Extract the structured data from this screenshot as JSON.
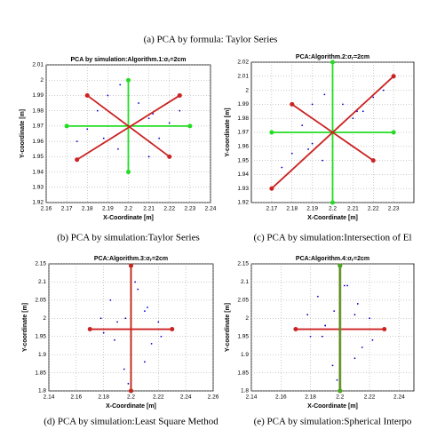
{
  "figure_caption": "(a) PCA by formula: Taylor Series",
  "chart_data": [
    {
      "type": "scatter",
      "title": "PCA by simulation:Algorithm.1:σ",
      "title_sub": "r",
      "title_end": "=2cm",
      "caption": "(b) PCA by simulation:Taylor Series",
      "xlabel": "X-Coordinate [m]",
      "ylabel": "Y-coordinate [m]",
      "xlim": [
        2.16,
        2.24
      ],
      "xticks": [
        2.16,
        2.17,
        2.18,
        2.19,
        {
          "value": 2.2,
          "label": "2.2"
        },
        2.21,
        2.22,
        2.23,
        2.24
      ],
      "ylim": [
        1.92,
        2.01
      ],
      "yticks": [
        1.92,
        1.93,
        1.94,
        1.95,
        1.96,
        {
          "value": 1.97,
          "label": "1.97"
        },
        1.98,
        1.99,
        {
          "value": 2.0,
          "label": "2"
        },
        2.01
      ],
      "points": {
        "color": "#0000cc",
        "x": [
          2.19,
          2.21,
          2.2,
          2.185,
          2.215,
          2.195,
          2.205,
          2.18,
          2.22,
          2.2,
          2.19,
          2.21,
          2.175,
          2.225,
          2.198,
          2.203,
          2.188,
          2.212,
          2.2,
          2.196
        ],
        "y": [
          1.97,
          1.975,
          1.96,
          1.98,
          1.962,
          1.955,
          1.985,
          1.968,
          1.972,
          1.99,
          1.99,
          1.95,
          1.96,
          1.98,
          1.972,
          1.967,
          1.962,
          1.978,
          1.945,
          1.997
        ]
      },
      "segments": [
        {
          "color": "#22dd22",
          "x": [
            2.17,
            2.23
          ],
          "y": [
            1.97,
            1.97
          ]
        },
        {
          "color": "#22dd22",
          "x": [
            2.2,
            2.2
          ],
          "y": [
            1.94,
            2.0
          ]
        },
        {
          "color": "#cc2222",
          "x": [
            2.18,
            2.22
          ],
          "y": [
            1.99,
            1.95
          ]
        },
        {
          "color": "#cc2222",
          "x": [
            2.175,
            2.225
          ],
          "y": [
            1.948,
            1.99
          ]
        }
      ]
    },
    {
      "type": "scatter",
      "title": "PCA:Algorithm.2:σ",
      "title_sub": "r",
      "title_end": "=2cm",
      "caption": "(c) PCA by simulation:Intersection of El",
      "xlabel": "X-Coordinate [m]",
      "ylabel": "Y-coordinate [m]",
      "xlim": [
        2.16,
        2.24
      ],
      "xticks": [
        2.17,
        2.18,
        2.19,
        {
          "value": 2.2,
          "label": "2.2"
        },
        2.21,
        2.22,
        2.23
      ],
      "ylim": [
        1.92,
        2.02
      ],
      "yticks": [
        1.92,
        1.93,
        1.94,
        1.95,
        1.96,
        {
          "value": 1.97,
          "label": "1.97"
        },
        1.98,
        1.99,
        {
          "value": 2.0,
          "label": "2"
        },
        2.01,
        2.02
      ],
      "points": {
        "color": "#0000cc",
        "x": [
          2.19,
          2.21,
          2.2,
          2.185,
          2.215,
          2.195,
          2.205,
          2.18,
          2.22,
          2.2,
          2.19,
          2.21,
          2.175,
          2.225,
          2.198,
          2.203,
          2.188,
          2.212,
          2.2,
          2.196
        ],
        "y": [
          1.962,
          1.98,
          1.96,
          1.975,
          1.985,
          1.95,
          1.99,
          1.955,
          1.995,
          1.97,
          1.99,
          1.96,
          1.945,
          2.0,
          1.972,
          1.967,
          1.958,
          1.985,
          1.945,
          1.997
        ]
      },
      "segments": [
        {
          "color": "#22dd22",
          "x": [
            2.17,
            2.23
          ],
          "y": [
            1.97,
            1.97
          ]
        },
        {
          "color": "#22dd22",
          "x": [
            2.2,
            2.2
          ],
          "y": [
            1.92,
            2.02
          ]
        },
        {
          "color": "#cc2222",
          "x": [
            2.17,
            2.23
          ],
          "y": [
            1.93,
            2.01
          ]
        },
        {
          "color": "#cc2222",
          "x": [
            2.18,
            2.22
          ],
          "y": [
            1.99,
            1.95
          ]
        }
      ]
    },
    {
      "type": "scatter",
      "title": "PCA:Algorithm.3:σ",
      "title_sub": "r",
      "title_end": "=2cm",
      "caption": "(d) PCA by simulation:Least Square Method",
      "xlabel": "X-Coordinate [m]",
      "ylabel": "Y-coordinate [m]",
      "xlim": [
        2.14,
        2.26
      ],
      "xticks": [
        2.14,
        2.16,
        2.18,
        {
          "value": 2.2,
          "label": "2.2"
        },
        2.22,
        2.24,
        2.26
      ],
      "ylim": [
        1.8,
        2.15
      ],
      "yticks": [
        {
          "value": 1.8,
          "label": "1.8"
        },
        1.85,
        {
          "value": 1.9,
          "label": "1.9"
        },
        1.95,
        {
          "value": 2.0,
          "label": "2"
        },
        2.05,
        {
          "value": 2.1,
          "label": "2.1"
        },
        2.15
      ],
      "points": {
        "color": "#0000cc",
        "x": [
          2.19,
          2.21,
          2.2,
          2.185,
          2.215,
          2.195,
          2.205,
          2.18,
          2.22,
          2.2,
          2.19,
          2.21,
          2.178,
          2.222,
          2.198,
          2.203,
          2.188,
          2.212,
          2.2,
          2.196
        ],
        "y": [
          1.97,
          2.02,
          1.9,
          2.05,
          1.93,
          1.86,
          2.08,
          1.96,
          1.99,
          2.12,
          1.99,
          1.88,
          2.0,
          1.95,
          1.82,
          2.1,
          1.94,
          2.03,
          1.97,
          2.0
        ]
      },
      "segments": [
        {
          "color": "#22dd22",
          "x": [
            2.2,
            2.2
          ],
          "y": [
            1.8,
            2.145
          ]
        },
        {
          "color": "#cc2222",
          "x": [
            2.17,
            2.23
          ],
          "y": [
            1.97,
            1.97
          ]
        },
        {
          "color": "#cc2222",
          "x": [
            2.2,
            2.2
          ],
          "y": [
            1.8,
            2.145
          ]
        }
      ]
    },
    {
      "type": "scatter",
      "title": "PCA:Algorithm.4:σ",
      "title_sub": "r",
      "title_end": "=2cm",
      "caption": "(e) PCA by simulation:Spherical Interpo",
      "xlabel": "X-Coordinate [m]",
      "ylabel": "Y-coordinate [m]",
      "xlim": [
        2.14,
        2.25
      ],
      "xticks": [
        2.14,
        2.16,
        2.18,
        {
          "value": 2.2,
          "label": "2.2"
        },
        2.22,
        2.24
      ],
      "ylim": [
        1.8,
        2.15
      ],
      "yticks": [
        {
          "value": 1.8,
          "label": "1.8"
        },
        1.85,
        {
          "value": 1.9,
          "label": "1.9"
        },
        1.95,
        {
          "value": 2.0,
          "label": "2"
        },
        2.05,
        {
          "value": 2.1,
          "label": "2.1"
        },
        2.15
      ],
      "points": {
        "color": "#0000cc",
        "x": [
          2.19,
          2.21,
          2.2,
          2.185,
          2.215,
          2.195,
          2.205,
          2.18,
          2.22,
          2.2,
          2.19,
          2.21,
          2.178,
          2.222,
          2.198,
          2.203,
          2.188,
          2.212,
          2.2,
          2.196
        ],
        "y": [
          1.98,
          2.01,
          1.91,
          2.06,
          1.92,
          1.87,
          2.09,
          1.95,
          2.0,
          2.11,
          1.98,
          1.89,
          2.01,
          1.94,
          1.83,
          2.09,
          1.95,
          2.04,
          1.96,
          2.02
        ]
      },
      "segments": [
        {
          "color": "#cc2222",
          "x": [
            2.17,
            2.23
          ],
          "y": [
            1.97,
            1.97
          ]
        },
        {
          "color": "#cc2222",
          "x": [
            2.2,
            2.2
          ],
          "y": [
            1.8,
            2.145
          ]
        },
        {
          "color": "#44aa22",
          "x": [
            2.2,
            2.2
          ],
          "y": [
            1.8,
            2.145
          ]
        }
      ]
    }
  ]
}
